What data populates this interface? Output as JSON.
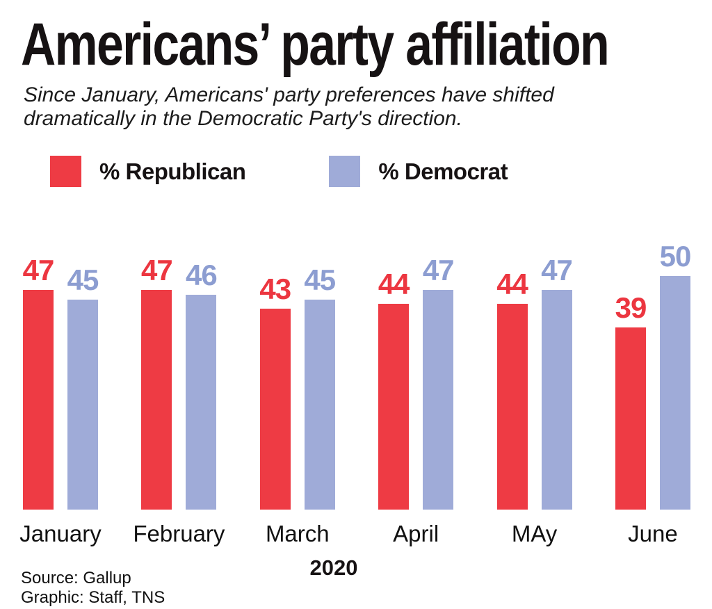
{
  "title": "Americans’ party affiliation",
  "subtitle_line1": "Since January, Americans' party preferences have shifted",
  "subtitle_line2": "dramatically in the Democratic Party's direction.",
  "legend": {
    "items": [
      {
        "label": "% Republican",
        "color": "#EE3B44"
      },
      {
        "label": "% Democrat",
        "color": "#9FABD8"
      }
    ]
  },
  "chart_data": {
    "type": "bar",
    "categories": [
      "January",
      "February",
      "March",
      "April",
      "MAy",
      "June"
    ],
    "series": [
      {
        "name": "% Republican",
        "color": "#EE3B44",
        "label_color": "#EC3640",
        "values": [
          47,
          47,
          43,
          44,
          44,
          39
        ]
      },
      {
        "name": "% Democrat",
        "color": "#9FABD8",
        "label_color": "#8C9DD1",
        "values": [
          45,
          46,
          45,
          47,
          47,
          50
        ]
      }
    ],
    "title": "Americans’ party affiliation",
    "xlabel": "2020",
    "ylabel": "",
    "ylim": [
      0,
      50
    ],
    "value_labels": true,
    "grid": false,
    "legend_position": "top-left"
  },
  "footer": {
    "year_label": "2020",
    "source": "Source: Gallup",
    "credit": "Graphic: Staff, TNS"
  }
}
